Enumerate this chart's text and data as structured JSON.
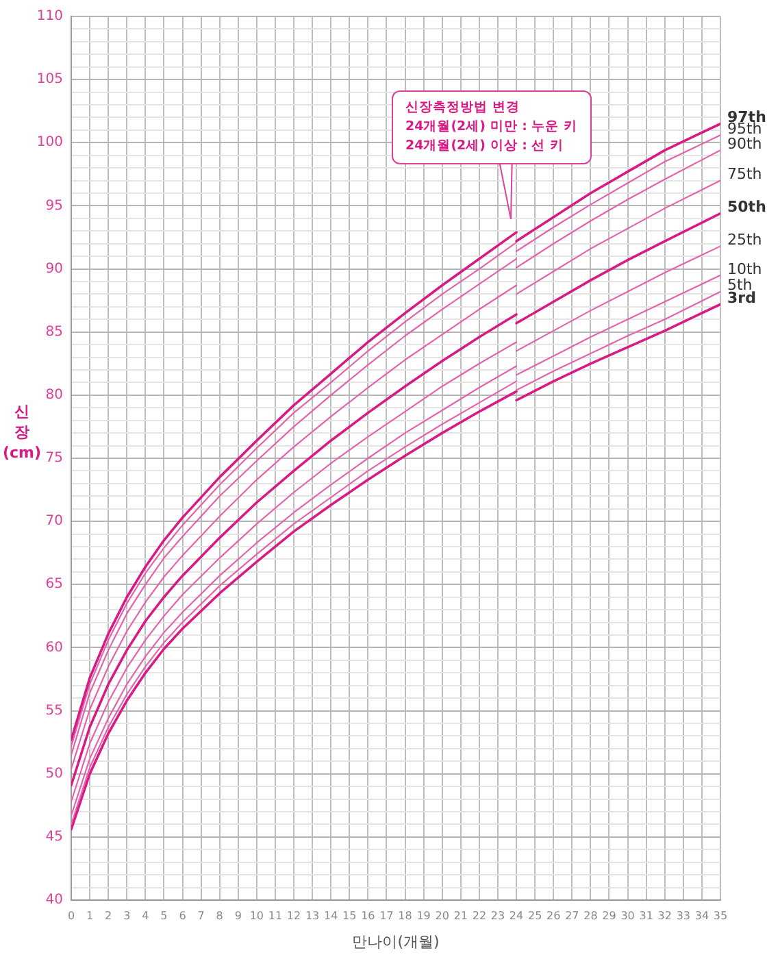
{
  "chart_data": {
    "type": "line",
    "xlabel": "만나이(개월)",
    "ylabel": "신\n장\n(cm)",
    "x": [
      0,
      1,
      2,
      3,
      4,
      5,
      6,
      8,
      10,
      12,
      14,
      16,
      18,
      20,
      22,
      24,
      24,
      26,
      28,
      30,
      32,
      35
    ],
    "xlim": [
      0,
      35
    ],
    "xticks": [
      0,
      1,
      2,
      3,
      4,
      5,
      6,
      7,
      8,
      9,
      10,
      11,
      12,
      13,
      14,
      15,
      16,
      17,
      18,
      19,
      20,
      21,
      22,
      23,
      24,
      25,
      26,
      27,
      28,
      29,
      30,
      31,
      32,
      33,
      34,
      35
    ],
    "ylim": [
      40,
      110
    ],
    "yticks": [
      40,
      {
        "value": 41,
        "label": null
      },
      {
        "value": 42,
        "label": null
      },
      {
        "value": 43,
        "label": null
      },
      {
        "value": 44,
        "label": null
      },
      45,
      {
        "value": 46,
        "label": null
      },
      {
        "value": 47,
        "label": null
      },
      {
        "value": 48,
        "label": null
      },
      {
        "value": 49,
        "label": null
      },
      50,
      {
        "value": 51,
        "label": null
      },
      {
        "value": 52,
        "label": null
      },
      {
        "value": 53,
        "label": null
      },
      {
        "value": 54,
        "label": null
      },
      55,
      {
        "value": 56,
        "label": null
      },
      {
        "value": 57,
        "label": null
      },
      {
        "value": 58,
        "label": null
      },
      {
        "value": 59,
        "label": null
      },
      60,
      {
        "value": 61,
        "label": null
      },
      {
        "value": 62,
        "label": null
      },
      {
        "value": 63,
        "label": null
      },
      {
        "value": 64,
        "label": null
      },
      65,
      {
        "value": 66,
        "label": null
      },
      {
        "value": 67,
        "label": null
      },
      {
        "value": 68,
        "label": null
      },
      {
        "value": 69,
        "label": null
      },
      70,
      {
        "value": 71,
        "label": null
      },
      {
        "value": 72,
        "label": null
      },
      {
        "value": 73,
        "label": null
      },
      {
        "value": 74,
        "label": null
      },
      75,
      {
        "value": 76,
        "label": null
      },
      {
        "value": 77,
        "label": null
      },
      {
        "value": 78,
        "label": null
      },
      {
        "value": 79,
        "label": null
      },
      80,
      {
        "value": 81,
        "label": null
      },
      {
        "value": 82,
        "label": null
      },
      {
        "value": 83,
        "label": null
      },
      {
        "value": 84,
        "label": null
      },
      85,
      {
        "value": 86,
        "label": null
      },
      {
        "value": 87,
        "label": null
      },
      {
        "value": 88,
        "label": null
      },
      {
        "value": 89,
        "label": null
      },
      90,
      {
        "value": 91,
        "label": null
      },
      {
        "value": 92,
        "label": null
      },
      {
        "value": 93,
        "label": null
      },
      {
        "value": 94,
        "label": null
      },
      95,
      {
        "value": 96,
        "label": null
      },
      {
        "value": 97,
        "label": null
      },
      {
        "value": 98,
        "label": null
      },
      {
        "value": 99,
        "label": null
      },
      100,
      {
        "value": 101,
        "label": null
      },
      {
        "value": 102,
        "label": null
      },
      {
        "value": 103,
        "label": null
      },
      {
        "value": 104,
        "label": null
      },
      105,
      {
        "value": 106,
        "label": null
      },
      {
        "value": 107,
        "label": null
      },
      {
        "value": 108,
        "label": null
      },
      {
        "value": 109,
        "label": null
      },
      110
    ],
    "grid": true,
    "legend": false,
    "marker": "none",
    "line_style": "solid",
    "series": [
      {
        "name": "97th",
        "color": "#d81b84",
        "values": [
          52.7,
          57.6,
          61.1,
          64.0,
          66.4,
          68.5,
          70.3,
          73.5,
          76.4,
          79.2,
          81.7,
          84.2,
          86.5,
          88.7,
          90.8,
          92.9,
          92.2,
          94.1,
          96.0,
          97.7,
          99.4,
          101.5
        ]
      },
      {
        "name": "95th",
        "color": "#e463ad",
        "values": [
          52.2,
          57.1,
          60.6,
          63.5,
          65.9,
          67.9,
          69.7,
          72.9,
          75.8,
          78.6,
          81.0,
          83.5,
          85.8,
          88.0,
          90.0,
          92.1,
          91.4,
          93.3,
          95.1,
          96.8,
          98.5,
          100.6
        ]
      },
      {
        "name": "90th",
        "color": "#e463ad",
        "values": [
          51.5,
          56.4,
          59.8,
          62.7,
          65.0,
          67.1,
          68.8,
          72.0,
          74.8,
          77.5,
          80.0,
          82.4,
          84.7,
          86.8,
          88.8,
          90.8,
          90.1,
          92.0,
          93.8,
          95.5,
          97.1,
          99.4
        ]
      },
      {
        "name": "75th",
        "color": "#e463ad",
        "values": [
          50.4,
          55.1,
          58.5,
          61.3,
          63.6,
          65.6,
          67.3,
          70.4,
          73.3,
          75.9,
          78.3,
          80.6,
          82.8,
          84.8,
          86.8,
          88.7,
          88.0,
          89.8,
          91.6,
          93.2,
          94.8,
          97.0
        ]
      },
      {
        "name": "50th",
        "color": "#d81b84",
        "values": [
          49.1,
          53.7,
          57.1,
          59.8,
          62.1,
          64.0,
          65.7,
          68.7,
          71.5,
          74.0,
          76.4,
          78.6,
          80.7,
          82.7,
          84.6,
          86.4,
          85.7,
          87.4,
          89.1,
          90.7,
          92.2,
          94.4
        ]
      },
      {
        "name": "25th",
        "color": "#e463ad",
        "values": [
          47.8,
          52.4,
          55.7,
          58.4,
          60.6,
          62.5,
          64.2,
          67.1,
          69.8,
          72.3,
          74.6,
          76.7,
          78.7,
          80.7,
          82.5,
          84.2,
          83.5,
          85.1,
          86.7,
          88.2,
          89.7,
          91.8
        ]
      },
      {
        "name": "10th",
        "color": "#e463ad",
        "values": [
          46.7,
          51.2,
          54.4,
          57.1,
          59.3,
          61.2,
          62.8,
          65.7,
          68.3,
          70.7,
          72.9,
          75.0,
          77.0,
          78.8,
          80.6,
          82.3,
          81.6,
          83.1,
          84.6,
          86.0,
          87.4,
          89.5
        ]
      },
      {
        "name": "5th",
        "color": "#e463ad",
        "values": [
          46.0,
          50.5,
          53.7,
          56.3,
          58.5,
          60.4,
          62.0,
          64.9,
          67.4,
          69.8,
          71.9,
          74.0,
          75.9,
          77.7,
          79.4,
          81.1,
          80.4,
          81.9,
          83.3,
          84.7,
          86.0,
          88.2
        ]
      },
      {
        "name": "3rd",
        "color": "#d81b84",
        "values": [
          45.6,
          50.0,
          53.2,
          55.8,
          58.0,
          59.9,
          61.5,
          64.3,
          66.8,
          69.2,
          71.3,
          73.3,
          75.2,
          77.0,
          78.7,
          80.3,
          79.6,
          81.1,
          82.5,
          83.8,
          85.1,
          87.2
        ]
      }
    ],
    "annotations": [
      "신장측정방법 변경\n24개월(2세) 미만 : 누운 키\n24개월(2세) 이상 : 선 키"
    ]
  }
}
